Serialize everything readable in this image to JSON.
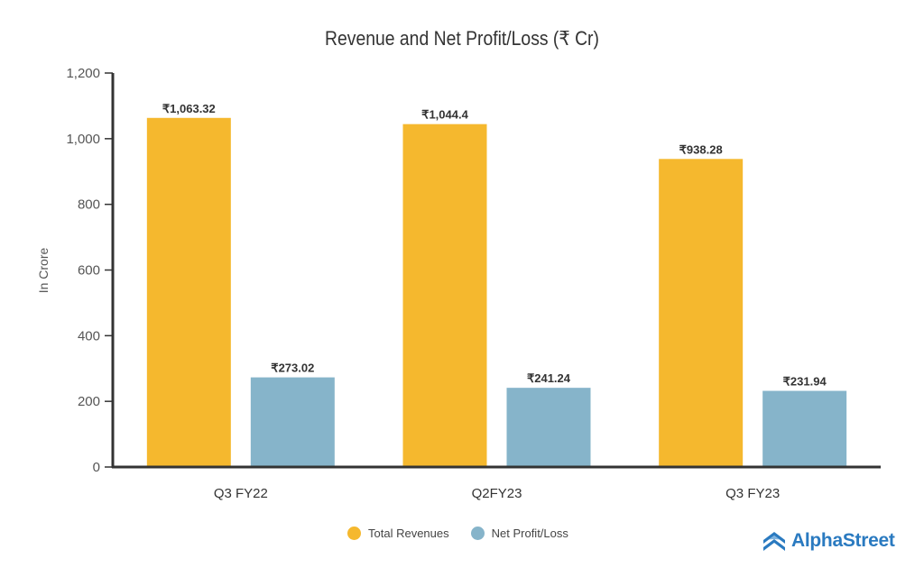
{
  "chart_data": {
    "type": "bar",
    "title": "Revenue and Net Profit/Loss (₹ Cr)",
    "xlabel": "",
    "ylabel": "In Crore",
    "ylim": [
      0,
      1200
    ],
    "yticks": [
      0,
      200,
      400,
      600,
      800,
      1000,
      1200
    ],
    "ytick_labels": [
      "0",
      "200",
      "400",
      "600",
      "800",
      "1,000",
      "1,200"
    ],
    "grid": false,
    "legend_position": "bottom-center",
    "categories": [
      "Q3 FY22",
      "Q2FY23",
      "Q3 FY23"
    ],
    "series": [
      {
        "name": "Total Revenues",
        "color": "#f5b82e",
        "values": [
          1063.32,
          1044.4,
          938.28
        ],
        "labels": [
          "₹1,063.32",
          "₹1,044.4",
          "₹938.28"
        ]
      },
      {
        "name": "Net Profit/Loss",
        "color": "#86b4ca",
        "values": [
          273.02,
          241.24,
          231.94
        ],
        "labels": [
          "₹273.02",
          "₹241.24",
          "₹231.94"
        ]
      }
    ]
  },
  "brand": {
    "name": "AlphaStreet",
    "color": "#2a7ac0"
  }
}
